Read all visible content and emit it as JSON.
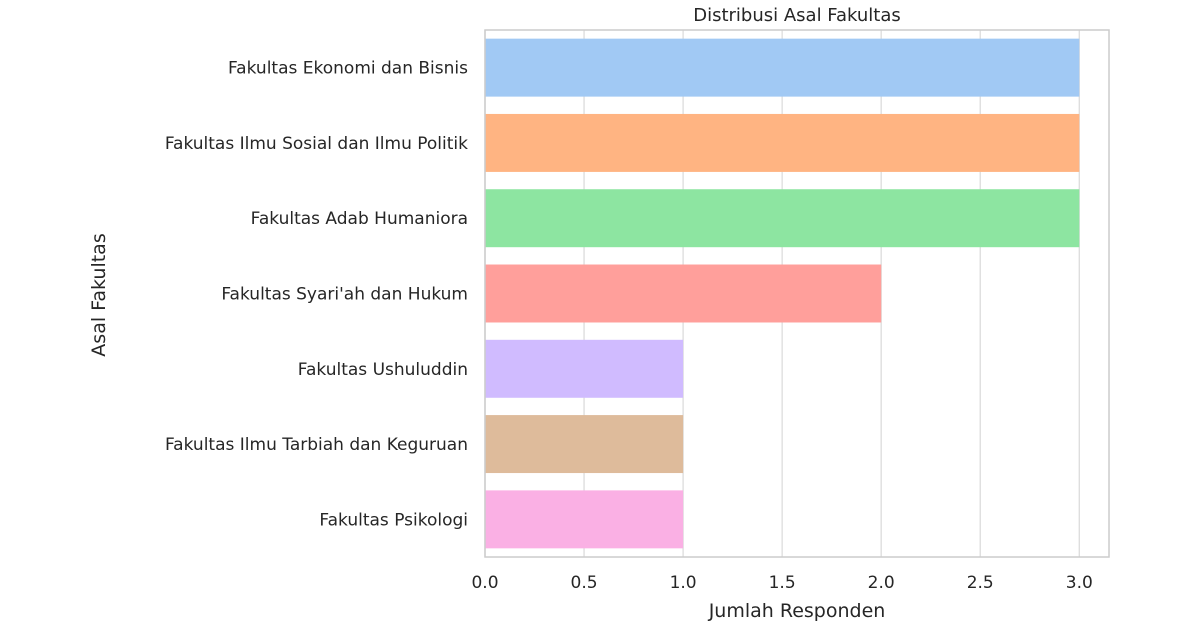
{
  "chart_data": {
    "type": "bar",
    "orientation": "horizontal",
    "title": "Distribusi Asal Fakultas",
    "xlabel": "Jumlah Responden",
    "ylabel": "Asal Fakultas",
    "xlim": [
      0,
      3.15
    ],
    "xticks": [
      "0.0",
      "0.5",
      "1.0",
      "1.5",
      "2.0",
      "2.5",
      "3.0"
    ],
    "xtick_values": [
      0,
      0.5,
      1,
      1.5,
      2,
      2.5,
      3
    ],
    "grid": true,
    "categories": [
      "Fakultas Ekonomi dan Bisnis",
      "Fakultas Ilmu Sosial dan Ilmu Politik",
      "Fakultas Adab Humaniora",
      "Fakultas Syari'ah dan Hukum",
      "Fakultas Ushuluddin",
      "Fakultas Ilmu Tarbiah dan Keguruan",
      "Fakultas Psikologi"
    ],
    "values": [
      3,
      3,
      3,
      2,
      1,
      1,
      1
    ],
    "colors": [
      "#a1c9f4",
      "#ffb482",
      "#8de5a1",
      "#ff9f9b",
      "#d0bbff",
      "#debb9b",
      "#fab0e4"
    ]
  }
}
